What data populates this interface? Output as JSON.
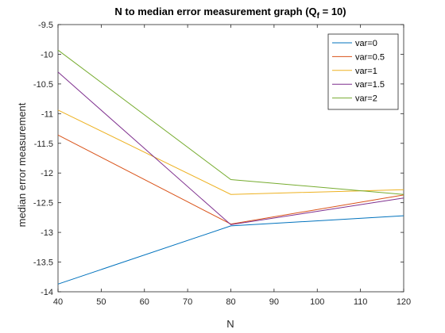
{
  "chart_data": {
    "type": "line",
    "title_main": "N to median error measurement graph (Q",
    "title_sub": "f",
    "title_tail": " = 10)",
    "xlabel": "N",
    "ylabel": "median error measurement",
    "xlim": [
      40,
      120
    ],
    "ylim": [
      -14,
      -9.5
    ],
    "xticks": [
      40,
      50,
      60,
      70,
      80,
      90,
      100,
      110,
      120
    ],
    "yticks": [
      -14,
      -13.5,
      -13,
      -12.5,
      -12,
      -11.5,
      -11,
      -10.5,
      -10,
      -9.5
    ],
    "x": [
      40,
      80,
      120
    ],
    "grid": false,
    "legend_position": "top-right",
    "series": [
      {
        "name": "var=0",
        "color": "#0072BD",
        "values": [
          -13.87,
          -12.89,
          -12.72
        ]
      },
      {
        "name": "var=0.5",
        "color": "#D95319",
        "values": [
          -11.36,
          -12.86,
          -12.37
        ]
      },
      {
        "name": "var=1",
        "color": "#EDB120",
        "values": [
          -10.94,
          -12.36,
          -12.28
        ]
      },
      {
        "name": "var=1.5",
        "color": "#7E2F8E",
        "values": [
          -10.3,
          -12.87,
          -12.42
        ]
      },
      {
        "name": "var=2",
        "color": "#77AC30",
        "values": [
          -9.93,
          -12.11,
          -12.36
        ]
      }
    ]
  }
}
